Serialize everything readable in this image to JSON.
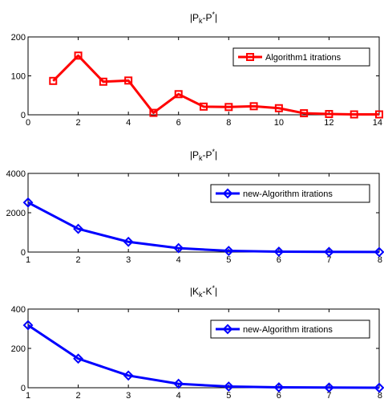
{
  "chart_data": [
    {
      "type": "line",
      "title": {
        "base": "|P",
        "sub": "k",
        "mid": "-P",
        "sup": "*",
        "end": "|"
      },
      "xlim": [
        0,
        14
      ],
      "ylim": [
        0,
        200
      ],
      "xticks": [
        "0",
        "2",
        "4",
        "6",
        "8",
        "10",
        "12",
        "14"
      ],
      "yticks": [
        "0",
        "100",
        "200"
      ],
      "legend_position": "top-right",
      "marker": "square",
      "series": [
        {
          "name": "Algorithm1 itrations",
          "color": "#ff0000",
          "x": [
            1,
            2,
            3,
            4,
            5,
            6,
            7,
            8,
            9,
            10,
            11,
            12,
            13,
            14
          ],
          "y": [
            87,
            152,
            85,
            88,
            5,
            53,
            21,
            20,
            22,
            17,
            4,
            2,
            1,
            1
          ]
        }
      ]
    },
    {
      "type": "line",
      "title": {
        "base": "|P",
        "sub": "k",
        "mid": "-P",
        "sup": "*",
        "end": "|"
      },
      "xlim": [
        1,
        8
      ],
      "ylim": [
        0,
        4000
      ],
      "xticks": [
        "1",
        "2",
        "3",
        "4",
        "5",
        "6",
        "7",
        "8"
      ],
      "yticks": [
        "0",
        "2000",
        "4000"
      ],
      "legend_position": "top-right",
      "marker": "diamond",
      "series": [
        {
          "name": "new-Algorithm itrations",
          "color": "#0000ff",
          "x": [
            1,
            2,
            3,
            4,
            5,
            6,
            7,
            8
          ],
          "y": [
            2520,
            1180,
            520,
            200,
            60,
            20,
            8,
            4
          ]
        }
      ]
    },
    {
      "type": "line",
      "title": {
        "base": "|K",
        "sub": "k",
        "mid": "-K",
        "sup": "*",
        "end": "|"
      },
      "xlim": [
        1,
        8
      ],
      "ylim": [
        0,
        400
      ],
      "xticks": [
        "1",
        "2",
        "3",
        "4",
        "5",
        "6",
        "7",
        "8"
      ],
      "yticks": [
        "0",
        "200",
        "400"
      ],
      "legend_position": "top-right",
      "marker": "diamond",
      "series": [
        {
          "name": "new-Algorithm itrations",
          "color": "#0000ff",
          "x": [
            1,
            2,
            3,
            4,
            5,
            6,
            7,
            8
          ],
          "y": [
            318,
            148,
            62,
            20,
            6,
            2,
            1,
            0
          ]
        }
      ]
    }
  ]
}
